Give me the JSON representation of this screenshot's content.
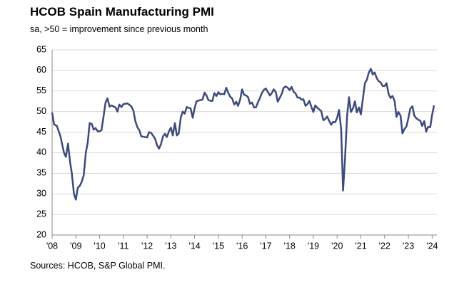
{
  "chart_data": {
    "type": "line",
    "title": "HCOB Spain Manufacturing PMI",
    "subtitle": "sa, >50 = improvement since previous month",
    "source": "Sources: HCOB, S&P Global PMI.",
    "grid": true,
    "xlim": [
      2008,
      2024.2
    ],
    "ylim": [
      20,
      65
    ],
    "yticks": [
      20,
      25,
      30,
      35,
      40,
      45,
      50,
      55,
      60,
      65
    ],
    "xticks": [
      {
        "value": 2008,
        "label": "'08"
      },
      {
        "value": 2009,
        "label": "'09"
      },
      {
        "value": 2010,
        "label": "'10"
      },
      {
        "value": 2011,
        "label": "'11"
      },
      {
        "value": 2012,
        "label": "'12"
      },
      {
        "value": 2013,
        "label": "'13"
      },
      {
        "value": 2014,
        "label": "'14"
      },
      {
        "value": 2015,
        "label": "'15"
      },
      {
        "value": 2016,
        "label": "'16"
      },
      {
        "value": 2017,
        "label": "'17"
      },
      {
        "value": 2018,
        "label": "'18"
      },
      {
        "value": 2019,
        "label": "'19"
      },
      {
        "value": 2020,
        "label": "'20"
      },
      {
        "value": 2021,
        "label": "'21"
      },
      {
        "value": 2022,
        "label": "'22"
      },
      {
        "value": 2023,
        "label": "'23"
      },
      {
        "value": 2024,
        "label": "'24"
      }
    ],
    "x": [
      2008.0,
      2008.08,
      2008.2,
      2008.35,
      2008.5,
      2008.58,
      2008.67,
      2008.75,
      2008.83,
      2008.92,
      2009.0,
      2009.08,
      2009.17,
      2009.25,
      2009.33,
      2009.42,
      2009.5,
      2009.58,
      2009.67,
      2009.75,
      2009.83,
      2009.92,
      2010.0,
      2010.08,
      2010.17,
      2010.25,
      2010.33,
      2010.42,
      2010.5,
      2010.67,
      2010.75,
      2010.83,
      2010.92,
      2011.0,
      2011.17,
      2011.33,
      2011.42,
      2011.5,
      2011.58,
      2011.67,
      2011.75,
      2011.83,
      2012.0,
      2012.08,
      2012.17,
      2012.33,
      2012.42,
      2012.5,
      2012.58,
      2012.67,
      2012.75,
      2012.83,
      2012.92,
      2013.0,
      2013.08,
      2013.17,
      2013.25,
      2013.33,
      2013.42,
      2013.5,
      2013.58,
      2013.67,
      2013.75,
      2013.83,
      2013.92,
      2014.0,
      2014.08,
      2014.25,
      2014.33,
      2014.42,
      2014.5,
      2014.58,
      2014.67,
      2014.75,
      2014.83,
      2014.92,
      2015.0,
      2015.08,
      2015.17,
      2015.25,
      2015.33,
      2015.42,
      2015.5,
      2015.58,
      2015.67,
      2015.75,
      2015.83,
      2015.92,
      2016.0,
      2016.08,
      2016.17,
      2016.25,
      2016.33,
      2016.42,
      2016.5,
      2016.58,
      2016.67,
      2016.75,
      2016.83,
      2016.92,
      2017.0,
      2017.08,
      2017.17,
      2017.25,
      2017.33,
      2017.42,
      2017.5,
      2017.58,
      2017.67,
      2017.75,
      2017.83,
      2017.92,
      2018.0,
      2018.08,
      2018.17,
      2018.25,
      2018.33,
      2018.42,
      2018.5,
      2018.58,
      2018.67,
      2018.75,
      2018.83,
      2018.92,
      2019.0,
      2019.08,
      2019.17,
      2019.33,
      2019.42,
      2019.5,
      2019.58,
      2019.67,
      2019.75,
      2019.83,
      2019.92,
      2020.0,
      2020.08,
      2020.17,
      2020.25,
      2020.33,
      2020.42,
      2020.5,
      2020.58,
      2020.67,
      2020.75,
      2020.83,
      2020.92,
      2021.0,
      2021.08,
      2021.17,
      2021.25,
      2021.33,
      2021.42,
      2021.5,
      2021.58,
      2021.67,
      2021.75,
      2021.83,
      2021.92,
      2022.0,
      2022.08,
      2022.17,
      2022.25,
      2022.33,
      2022.42,
      2022.5,
      2022.58,
      2022.67,
      2022.75,
      2022.83,
      2022.92,
      2023.0,
      2023.08,
      2023.17,
      2023.25,
      2023.33,
      2023.42,
      2023.5,
      2023.58,
      2023.67,
      2023.75,
      2023.83,
      2023.92,
      2024.0,
      2024.08
    ],
    "series": [
      {
        "color": "#3d4a7c",
        "values": [
          49.8,
          46.9,
          46.5,
          44.0,
          40.0,
          39.0,
          42.2,
          38.0,
          35.0,
          30.0,
          28.6,
          31.5,
          32.0,
          33.0,
          34.5,
          40.0,
          42.5,
          47.2,
          47.0,
          45.6,
          46.0,
          45.2,
          45.2,
          45.5,
          49.0,
          52.2,
          53.2,
          51.2,
          51.5,
          51.0,
          50.0,
          51.7,
          51.1,
          51.8,
          52.0,
          51.3,
          50.3,
          47.8,
          46.3,
          45.5,
          44.0,
          43.9,
          43.7,
          45.0,
          44.8,
          43.5,
          41.8,
          41.0,
          42.0,
          44.0,
          44.6,
          43.8,
          45.2,
          46.1,
          44.2,
          47.2,
          44.2,
          44.7,
          48.6,
          50.0,
          49.5,
          51.1,
          50.9,
          50.8,
          48.5,
          50.8,
          52.5,
          52.8,
          52.9,
          54.6,
          53.9,
          52.8,
          52.6,
          52.6,
          54.5,
          53.8,
          54.7,
          54.2,
          54.3,
          54.2,
          55.8,
          54.5,
          53.6,
          53.2,
          51.7,
          52.4,
          51.4,
          53.0,
          55.4,
          54.1,
          53.9,
          53.5,
          51.9,
          52.2,
          51.0,
          51.0,
          52.3,
          53.3,
          54.5,
          55.3,
          55.6,
          54.8,
          53.9,
          54.5,
          55.4,
          54.7,
          52.4,
          53.3,
          54.3,
          55.8,
          56.1,
          55.8,
          55.2,
          56.0,
          54.8,
          54.4,
          53.4,
          53.4,
          52.9,
          53.0,
          51.4,
          51.8,
          52.6,
          51.1,
          49.9,
          51.5,
          50.9,
          50.1,
          47.9,
          48.2,
          48.8,
          47.7,
          46.8,
          47.5,
          47.4,
          48.5,
          50.4,
          45.7,
          30.8,
          38.3,
          49.0,
          53.5,
          49.9,
          50.8,
          52.5,
          49.8,
          51.0,
          49.3,
          52.9,
          56.9,
          57.7,
          59.4,
          60.4,
          59.0,
          59.5,
          58.1,
          57.4,
          57.1,
          56.2,
          56.2,
          56.9,
          54.2,
          53.3,
          53.8,
          52.6,
          48.7,
          49.9,
          49.0,
          44.7,
          45.7,
          46.4,
          48.4,
          50.7,
          51.3,
          49.0,
          48.4,
          48.0,
          47.8,
          46.5,
          47.7,
          45.1,
          46.3,
          46.2,
          49.2,
          51.5
        ]
      }
    ]
  }
}
